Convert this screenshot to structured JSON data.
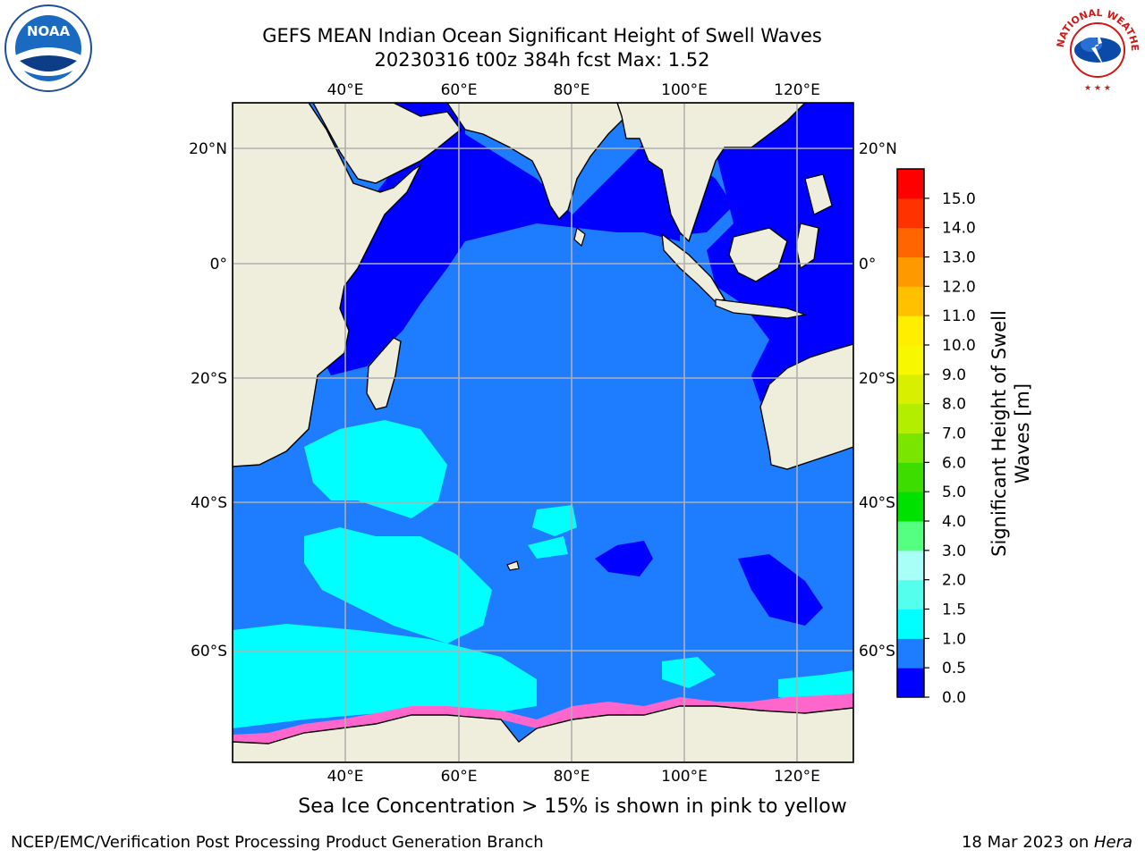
{
  "title": {
    "line1": "GEFS MEAN Indian Ocean Significant Height of Swell Waves",
    "line2": "20230316 t00z 384h fcst   Max: 1.52"
  },
  "map": {
    "lon_ticks": [
      "40°E",
      "60°E",
      "80°E",
      "100°E",
      "120°E"
    ],
    "lat_ticks": [
      "20°N",
      "0°",
      "20°S",
      "40°S",
      "60°S"
    ],
    "colors": {
      "land": "#efeedd",
      "coast": "#000000",
      "grid": "#b0b0b0",
      "band_0_0_5": "#0000ff",
      "band_0_5_1": "#1e7cff",
      "band_1_1_5": "#00ffff",
      "sea_ice": "#ff66cc"
    }
  },
  "colorbar": {
    "label": "Significant Height of Swell Waves [m]",
    "ticks": [
      "0.0",
      "0.5",
      "1.0",
      "1.5",
      "2.0",
      "3.0",
      "4.0",
      "5.0",
      "6.0",
      "7.0",
      "8.0",
      "9.0",
      "10.0",
      "11.0",
      "12.0",
      "13.0",
      "14.0",
      "15.0"
    ],
    "colors": [
      "#0000ff",
      "#1e7cff",
      "#00ffff",
      "#55ffee",
      "#a8fff8",
      "#55ff80",
      "#00e100",
      "#3ddd00",
      "#7ae600",
      "#b3ee00",
      "#d8f000",
      "#f7f700",
      "#ffee00",
      "#ffc000",
      "#ff9900",
      "#ff6600",
      "#ff3300",
      "#ff0000"
    ]
  },
  "footnote": "Sea Ice Concentration > 15% is shown in pink to yellow",
  "credit_left": "NCEP/EMC/Verification Post Processing Product Generation Branch",
  "credit_right_date": "18 Mar 2023 on ",
  "credit_right_machine": "Hera",
  "logos": {
    "noaa": "NOAA",
    "nws": "NATIONAL WEATHER SERVICE"
  }
}
